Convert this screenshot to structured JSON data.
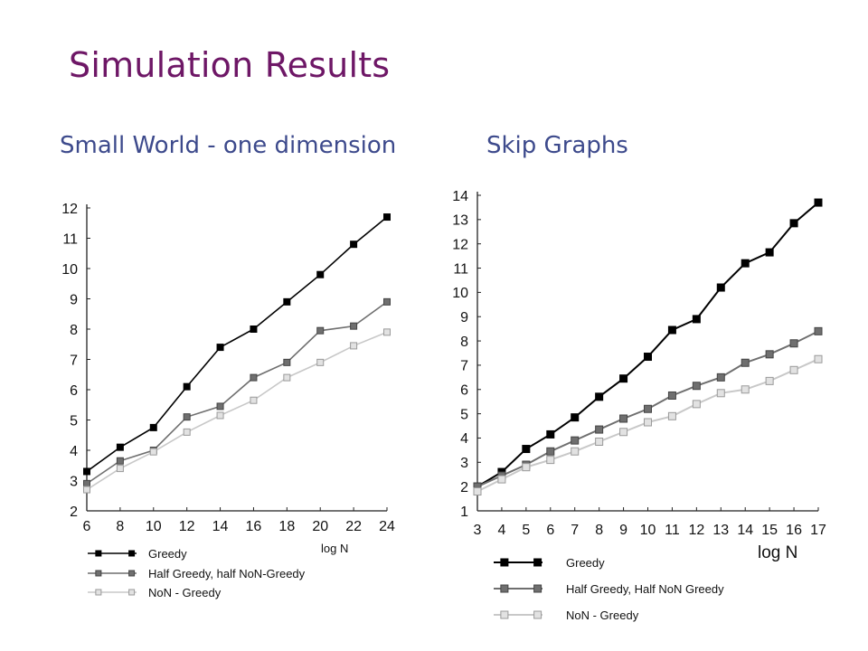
{
  "slide": {
    "title": "Simulation Results",
    "subtitle_left": "Small World - one dimension",
    "subtitle_right": "Skip Graphs"
  },
  "colors": {
    "title": "#6e1766",
    "subtitle": "#3d4a8c",
    "greedy": "#000000",
    "half": "#6f6f6f",
    "non": "#c8c8c8"
  },
  "chart_data": [
    {
      "type": "line",
      "title": "",
      "xlabel": "log N",
      "ylabel": "",
      "x": [
        6,
        8,
        10,
        12,
        14,
        16,
        18,
        20,
        22,
        24
      ],
      "xticks": [
        "6",
        "8",
        "10",
        "12",
        "14",
        "16",
        "18",
        "20",
        "22",
        "24"
      ],
      "yticks": [
        "2",
        "3",
        "4",
        "5",
        "6",
        "7",
        "8",
        "9",
        "10",
        "11",
        "12"
      ],
      "xlim": [
        6,
        24
      ],
      "ylim": [
        2,
        12
      ],
      "grid": false,
      "legend": "bottom",
      "series": [
        {
          "name": "Greedy",
          "key": "greedy",
          "values": [
            3.3,
            4.1,
            4.75,
            6.1,
            7.4,
            8.0,
            8.9,
            9.8,
            10.8,
            11.7
          ]
        },
        {
          "name": "Half Greedy, half NoN-Greedy",
          "key": "half",
          "values": [
            2.9,
            3.65,
            4.0,
            5.1,
            5.45,
            6.4,
            6.9,
            7.95,
            8.1,
            8.9
          ]
        },
        {
          "name": "NoN - Greedy",
          "key": "non",
          "values": [
            2.7,
            3.4,
            3.95,
            4.6,
            5.15,
            5.65,
            6.4,
            6.9,
            7.45,
            7.9
          ]
        }
      ]
    },
    {
      "type": "line",
      "title": "",
      "xlabel": "log N",
      "ylabel": "",
      "x": [
        3,
        4,
        5,
        6,
        7,
        8,
        9,
        10,
        11,
        12,
        13,
        14,
        15,
        16,
        17
      ],
      "xticks": [
        "3",
        "4",
        "5",
        "6",
        "7",
        "8",
        "9",
        "10",
        "11",
        "12",
        "13",
        "14",
        "15",
        "16",
        "17"
      ],
      "yticks": [
        "1",
        "2",
        "3",
        "4",
        "5",
        "6",
        "7",
        "8",
        "9",
        "10",
        "11",
        "12",
        "13",
        "14"
      ],
      "xlim": [
        3,
        17
      ],
      "ylim": [
        1,
        14
      ],
      "grid": false,
      "legend": "bottom",
      "series": [
        {
          "name": "Greedy",
          "key": "greedy",
          "values": [
            2.0,
            2.6,
            3.55,
            4.15,
            4.85,
            5.7,
            6.45,
            7.35,
            8.45,
            8.9,
            10.2,
            11.2,
            11.65,
            12.85,
            13.7
          ]
        },
        {
          "name": "Half Greedy, Half NoN Greedy",
          "key": "half",
          "values": [
            2.0,
            2.45,
            2.9,
            3.45,
            3.9,
            4.35,
            4.8,
            5.2,
            5.75,
            6.15,
            6.5,
            7.1,
            7.45,
            7.9,
            8.4
          ]
        },
        {
          "name": "NoN - Greedy",
          "key": "non",
          "values": [
            1.8,
            2.3,
            2.8,
            3.1,
            3.45,
            3.85,
            4.25,
            4.65,
            4.9,
            5.4,
            5.85,
            6.0,
            6.35,
            6.8,
            7.25
          ]
        }
      ]
    }
  ]
}
